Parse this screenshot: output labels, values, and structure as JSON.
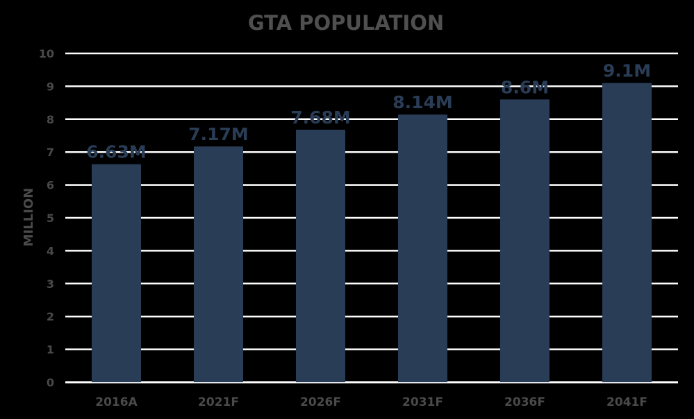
{
  "chart_data": {
    "type": "bar",
    "title": "GTA POPULATION",
    "xlabel": "",
    "ylabel": "MILLION",
    "ylim": [
      0,
      10
    ],
    "yticks": [
      0,
      1,
      2,
      3,
      4,
      5,
      6,
      7,
      8,
      9,
      10
    ],
    "grid": true,
    "legend": "none",
    "categories": [
      "2016A",
      "2021F",
      "2026F",
      "2031F",
      "2036F",
      "2041F"
    ],
    "values": [
      6.63,
      7.17,
      7.68,
      8.14,
      8.6,
      9.1
    ],
    "data_labels": [
      "6.63M",
      "7.17M",
      "7.68M",
      "8.14M",
      "8.6M",
      "9.1M"
    ],
    "colors": {
      "background": "#000000",
      "bar": "#2a3d57",
      "grid": "#ffffff",
      "label": "#2a3d57",
      "text": "#4a4a4a"
    }
  }
}
